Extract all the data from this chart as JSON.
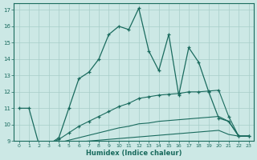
{
  "xlabel": "Humidex (Indice chaleur)",
  "bg_color": "#cce8e5",
  "grid_color": "#a8cdc9",
  "line_color": "#1a6b5e",
  "xlim": [
    -0.5,
    23.5
  ],
  "ylim": [
    9,
    17.4
  ],
  "xticks": [
    0,
    1,
    2,
    3,
    4,
    5,
    6,
    7,
    8,
    9,
    10,
    11,
    12,
    13,
    14,
    15,
    16,
    17,
    18,
    19,
    20,
    21,
    22,
    23
  ],
  "yticks": [
    9,
    10,
    11,
    12,
    13,
    14,
    15,
    16,
    17
  ],
  "line1_x": [
    0,
    1,
    2,
    3,
    4,
    5,
    6,
    7,
    8,
    9,
    10,
    11,
    12,
    13,
    14,
    15,
    16,
    17,
    18,
    19,
    20,
    21,
    22,
    23
  ],
  "line1_y": [
    11.0,
    11.0,
    8.8,
    8.8,
    9.2,
    11.0,
    12.8,
    13.2,
    14.0,
    15.5,
    16.0,
    15.8,
    17.1,
    14.5,
    13.3,
    15.5,
    11.8,
    14.7,
    13.8,
    12.0,
    10.4,
    10.2,
    9.3,
    9.3
  ],
  "line2_x": [
    2,
    3,
    4,
    5,
    6,
    7,
    8,
    9,
    10,
    11,
    12,
    13,
    14,
    15,
    16,
    17,
    18,
    19,
    20,
    21,
    22,
    23
  ],
  "line2_y": [
    8.8,
    8.8,
    9.1,
    9.5,
    9.9,
    10.2,
    10.5,
    10.8,
    11.1,
    11.3,
    11.6,
    11.7,
    11.8,
    11.85,
    11.9,
    12.0,
    12.0,
    12.05,
    12.1,
    10.5,
    9.3,
    9.3
  ],
  "line3_x": [
    2,
    3,
    4,
    5,
    6,
    7,
    8,
    9,
    10,
    11,
    12,
    13,
    14,
    15,
    16,
    17,
    18,
    19,
    20,
    21,
    22,
    23
  ],
  "line3_y": [
    8.8,
    8.8,
    8.9,
    9.05,
    9.2,
    9.35,
    9.5,
    9.65,
    9.8,
    9.9,
    10.05,
    10.1,
    10.2,
    10.25,
    10.3,
    10.35,
    10.4,
    10.45,
    10.5,
    10.2,
    9.3,
    9.3
  ],
  "line4_x": [
    2,
    3,
    4,
    5,
    6,
    7,
    8,
    9,
    10,
    11,
    12,
    13,
    14,
    15,
    16,
    17,
    18,
    19,
    20,
    21,
    22,
    23
  ],
  "line4_y": [
    8.8,
    8.8,
    8.85,
    8.9,
    8.95,
    9.0,
    9.05,
    9.1,
    9.15,
    9.2,
    9.25,
    9.3,
    9.35,
    9.4,
    9.45,
    9.5,
    9.55,
    9.6,
    9.65,
    9.4,
    9.3,
    9.3
  ]
}
